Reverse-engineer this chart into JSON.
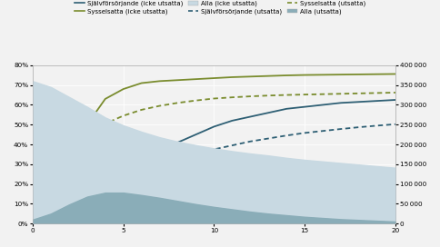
{
  "x": [
    0,
    1,
    2,
    3,
    4,
    5,
    6,
    7,
    8,
    9,
    10,
    11,
    12,
    13,
    14,
    15,
    16,
    17,
    18,
    19,
    20
  ],
  "sjalvforsorjande_icke": [
    0.02,
    0.05,
    0.09,
    0.13,
    0.18,
    0.24,
    0.3,
    0.36,
    0.41,
    0.45,
    0.49,
    0.52,
    0.54,
    0.56,
    0.58,
    0.59,
    0.6,
    0.61,
    0.615,
    0.62,
    0.625
  ],
  "sysselsatta_icke": [
    0.02,
    0.12,
    0.3,
    0.5,
    0.63,
    0.68,
    0.71,
    0.72,
    0.725,
    0.73,
    0.735,
    0.74,
    0.743,
    0.746,
    0.749,
    0.751,
    0.752,
    0.753,
    0.754,
    0.755,
    0.756
  ],
  "sjalvforsorjande_uts": [
    0.03,
    0.08,
    0.14,
    0.19,
    0.225,
    0.255,
    0.28,
    0.305,
    0.33,
    0.355,
    0.375,
    0.395,
    0.415,
    0.43,
    0.445,
    0.458,
    0.468,
    0.478,
    0.487,
    0.495,
    0.502
  ],
  "sysselsatta_uts": [
    0.04,
    0.18,
    0.32,
    0.44,
    0.505,
    0.545,
    0.575,
    0.595,
    0.61,
    0.622,
    0.632,
    0.638,
    0.643,
    0.647,
    0.65,
    0.652,
    0.654,
    0.656,
    0.658,
    0.66,
    0.662
  ],
  "alla_icke": [
    360000,
    345000,
    320000,
    295000,
    268000,
    248000,
    232000,
    218000,
    207000,
    198000,
    190000,
    183000,
    177000,
    172000,
    166000,
    161000,
    157000,
    153000,
    149000,
    145000,
    141000
  ],
  "alla_uts": [
    10000,
    25000,
    48000,
    68000,
    78000,
    78000,
    72000,
    65000,
    57000,
    49000,
    42000,
    36000,
    30000,
    25000,
    21000,
    17000,
    14000,
    11000,
    9000,
    7000,
    5000
  ],
  "color_sjalv_icke": "#2e5f74",
  "color_syss_icke": "#7a8c2e",
  "color_sjalv_uts": "#2e5f74",
  "color_syss_uts": "#7a8c2e",
  "color_alla_icke": "#c8d9e2",
  "color_alla_uts": "#8aadb8",
  "ylim_left": [
    0,
    0.8
  ],
  "ylim_right": [
    0,
    400000
  ],
  "xlim": [
    0,
    20
  ],
  "yticks_left": [
    0,
    0.1,
    0.2,
    0.3,
    0.4,
    0.5,
    0.6,
    0.7,
    0.8
  ],
  "yticks_right": [
    0,
    50000,
    100000,
    150000,
    200000,
    250000,
    300000,
    350000,
    400000
  ],
  "legend_labels": [
    "Självförsörjande (icke utsatta)",
    "Sysselsatta (icke utsatta)",
    "Alla (icke utsatta)",
    "Självförsörjande (utsatta)",
    "Sysselsatta (utsatta)",
    "Alla (utsatta)"
  ],
  "bg_color": "#f2f2f2"
}
